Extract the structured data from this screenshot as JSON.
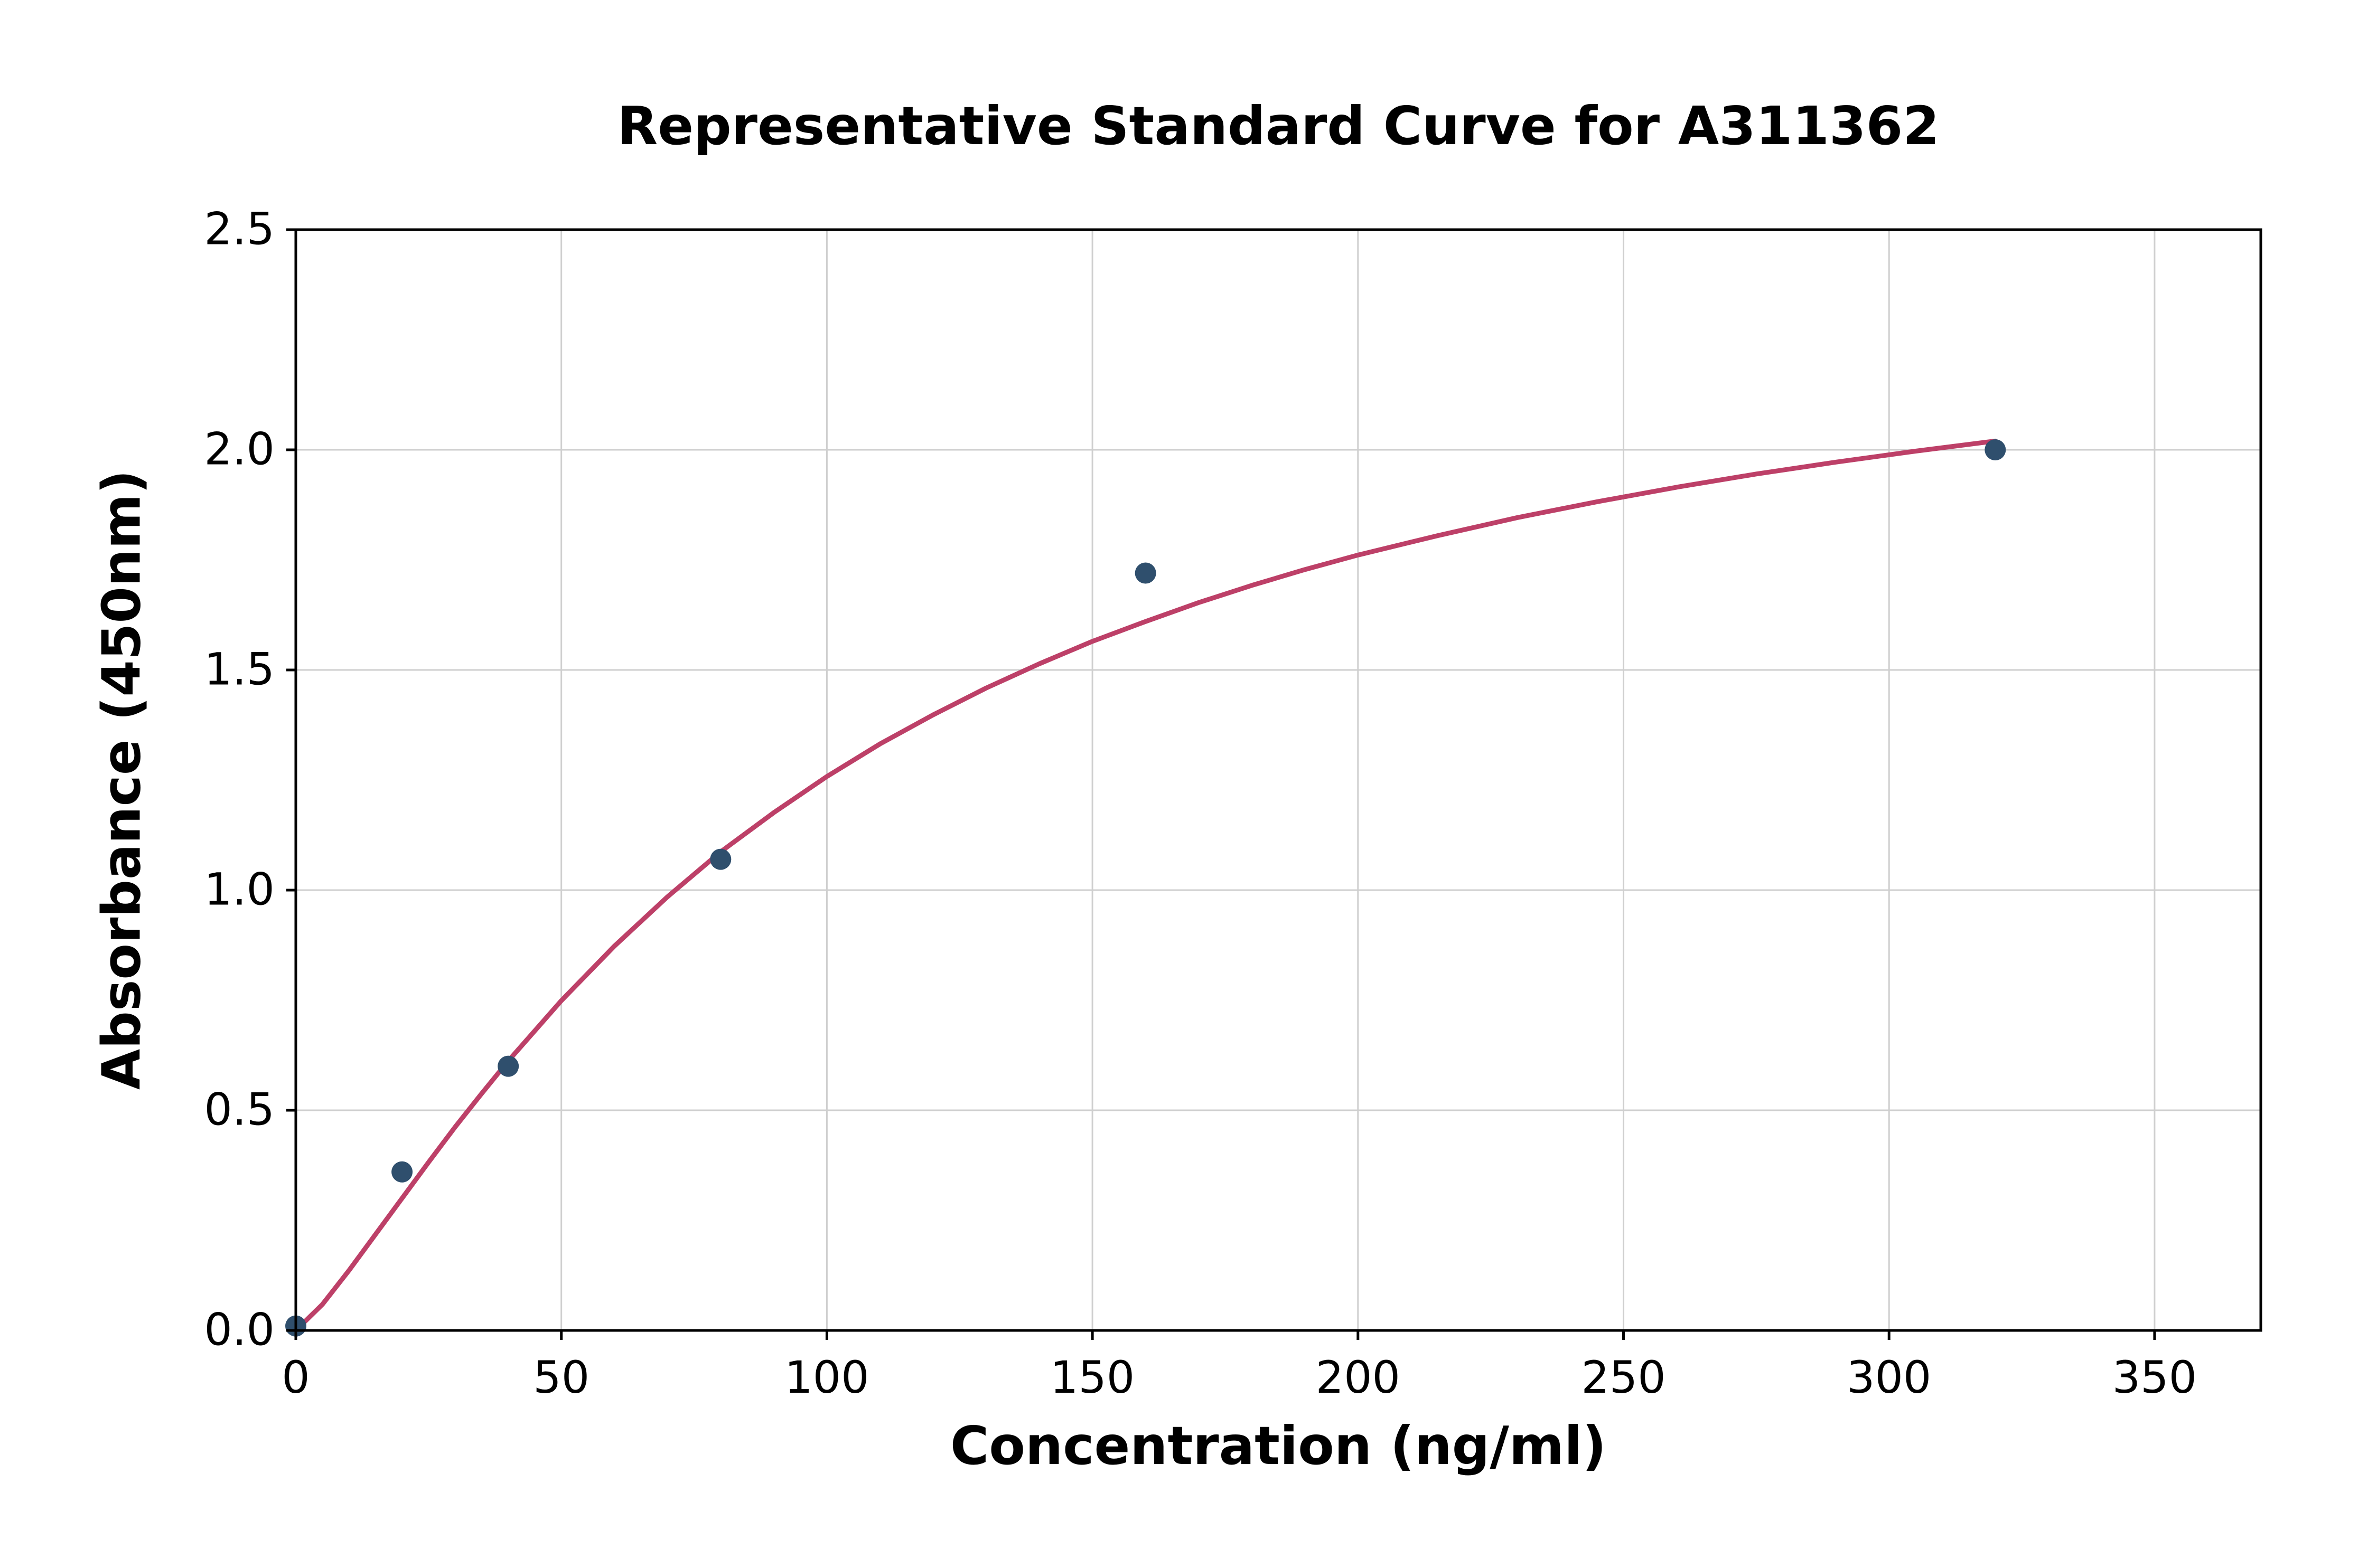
{
  "chart_data": {
    "type": "scatter",
    "title": "Representative Standard Curve for A311362",
    "xlabel": "Concentration (ng/ml)",
    "ylabel": "Absorbance (450nm)",
    "xlim": [
      0,
      370
    ],
    "ylim": [
      0,
      2.5
    ],
    "xticks": [
      0,
      50,
      100,
      150,
      200,
      250,
      300,
      350
    ],
    "xtick_labels": [
      "0",
      "50",
      "100",
      "150",
      "200",
      "250",
      "300",
      "350"
    ],
    "yticks": [
      0,
      0.5,
      1.0,
      1.5,
      2.0,
      2.5
    ],
    "ytick_labels": [
      "0.0",
      "0.5",
      "1.0",
      "1.5",
      "2.0",
      "2.5"
    ],
    "grid": true,
    "legend": false,
    "points": {
      "name": "standard-points",
      "x": [
        0,
        20,
        40,
        80,
        160,
        320
      ],
      "y": [
        0.01,
        0.36,
        0.6,
        1.07,
        1.72,
        2.0
      ]
    },
    "fit_curve": {
      "name": "fitted-standard-curve",
      "x": [
        0,
        5,
        10,
        15,
        20,
        25,
        30,
        35,
        40,
        50,
        60,
        70,
        80,
        90,
        100,
        110,
        120,
        130,
        140,
        150,
        160,
        170,
        180,
        190,
        200,
        215,
        230,
        245,
        260,
        275,
        290,
        305,
        320
      ],
      "y": [
        0,
        0.059,
        0.136,
        0.218,
        0.3,
        0.382,
        0.462,
        0.538,
        0.612,
        0.749,
        0.873,
        0.985,
        1.087,
        1.176,
        1.258,
        1.332,
        1.398,
        1.459,
        1.514,
        1.565,
        1.61,
        1.653,
        1.692,
        1.728,
        1.761,
        1.805,
        1.846,
        1.882,
        1.915,
        1.945,
        1.972,
        1.997,
        2.02
      ]
    },
    "colors": {
      "points": "#2f4f6d",
      "curve": "#bd4068",
      "grid": "#cfcfcf",
      "axis": "#000000",
      "background": "#ffffff"
    }
  }
}
